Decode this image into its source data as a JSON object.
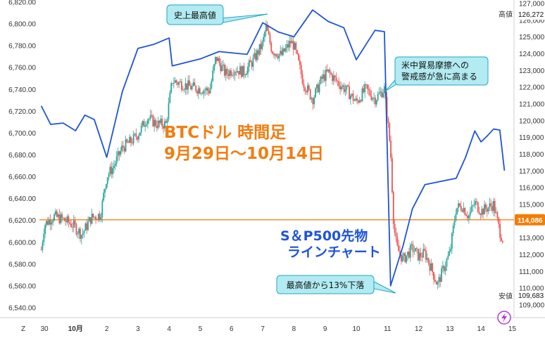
{
  "chart_data": {
    "type": "candlestick",
    "left_axis": {
      "ticks": [
        "6,820.00",
        "6,800.00",
        "6,780.00",
        "6,760.00",
        "6,740.00",
        "6,720.00",
        "6,700.00",
        "6,680.00",
        "6,660.00",
        "6,640.00",
        "6,620.00",
        "6,600.00",
        "6,580.00",
        "6,560.00",
        "6,540.00"
      ],
      "range": [
        6536,
        6822
      ]
    },
    "right_axis": {
      "ticks": [
        "127,000",
        "126,000",
        "125,000",
        "124,000",
        "123,000",
        "122,000",
        "121,000",
        "120,000",
        "119,000",
        "118,000",
        "117,000",
        "116,000",
        "115,000",
        "114,000",
        "113,000",
        "112,000",
        "111,000",
        "110,000",
        "109,000"
      ],
      "range": [
        108600,
        127200
      ]
    },
    "x_ticks": [
      "30",
      "10月",
      "2",
      "3",
      "4",
      "5",
      "6",
      "7",
      "8",
      "9",
      "10",
      "11",
      "12",
      "13",
      "14",
      "15"
    ],
    "x_days": [
      30,
      31,
      32,
      33,
      34,
      35,
      36,
      37,
      38,
      39,
      40,
      41,
      42,
      43,
      44,
      45
    ],
    "badges": {
      "high_label": "高値",
      "high_value": "126,272",
      "current_value": "114,086",
      "low_label": "安値",
      "low_value": "109,683"
    },
    "current_price": 114086,
    "btc_candles_approx": [
      [
        29.9,
        112300
      ],
      [
        30.0,
        113800
      ],
      [
        30.3,
        114300
      ],
      [
        30.6,
        114100
      ],
      [
        30.9,
        113800
      ],
      [
        31.2,
        113200
      ],
      [
        31.5,
        114200
      ],
      [
        31.8,
        114400
      ],
      [
        32.0,
        116700
      ],
      [
        32.2,
        117200
      ],
      [
        32.5,
        118400
      ],
      [
        32.8,
        118800
      ],
      [
        33.0,
        119200
      ],
      [
        33.3,
        120200
      ],
      [
        33.6,
        119800
      ],
      [
        33.9,
        119800
      ],
      [
        34.1,
        122400
      ],
      [
        34.4,
        122200
      ],
      [
        34.7,
        122000
      ],
      [
        35.0,
        121900
      ],
      [
        35.3,
        121800
      ],
      [
        35.5,
        123800
      ],
      [
        35.8,
        122800
      ],
      [
        36.1,
        123100
      ],
      [
        36.4,
        122900
      ],
      [
        36.7,
        123600
      ],
      [
        37.0,
        124600
      ],
      [
        37.1,
        125600
      ],
      [
        37.3,
        124200
      ],
      [
        37.6,
        123900
      ],
      [
        37.9,
        124700
      ],
      [
        38.0,
        124500
      ],
      [
        38.3,
        122300
      ],
      [
        38.6,
        121300
      ],
      [
        38.9,
        122500
      ],
      [
        39.1,
        122900
      ],
      [
        39.4,
        122300
      ],
      [
        39.7,
        121800
      ],
      [
        40.0,
        121100
      ],
      [
        40.3,
        121900
      ],
      [
        40.6,
        121300
      ],
      [
        40.9,
        121900
      ],
      [
        41.0,
        120100
      ],
      [
        41.1,
        118200
      ],
      [
        41.2,
        113800
      ],
      [
        41.3,
        112400
      ],
      [
        41.5,
        111700
      ],
      [
        41.8,
        112400
      ],
      [
        42.0,
        111900
      ],
      [
        42.2,
        112100
      ],
      [
        42.4,
        111200
      ],
      [
        42.6,
        110200
      ],
      [
        42.8,
        111200
      ],
      [
        43.0,
        112100
      ],
      [
        43.2,
        114800
      ],
      [
        43.4,
        114900
      ],
      [
        43.6,
        114300
      ],
      [
        43.8,
        115100
      ],
      [
        44.0,
        114600
      ],
      [
        44.2,
        114800
      ],
      [
        44.4,
        115000
      ],
      [
        44.6,
        113400
      ],
      [
        44.7,
        112900
      ]
    ],
    "sp500_line_approx": [
      [
        29.9,
        6725
      ],
      [
        30.2,
        6705
      ],
      [
        30.6,
        6710
      ],
      [
        31.0,
        6705
      ],
      [
        31.3,
        6715
      ],
      [
        31.6,
        6710
      ],
      [
        32.0,
        6680
      ],
      [
        32.5,
        6740
      ],
      [
        33.0,
        6775
      ],
      [
        33.5,
        6780
      ],
      [
        34.0,
        6790
      ],
      [
        34.1,
        6762
      ],
      [
        35.0,
        6765
      ],
      [
        35.6,
        6775
      ],
      [
        36.5,
        6775
      ],
      [
        37.0,
        6800
      ],
      [
        37.5,
        6790
      ],
      [
        38.0,
        6790
      ],
      [
        38.6,
        6815
      ],
      [
        39.1,
        6800
      ],
      [
        39.6,
        6795
      ],
      [
        40.0,
        6770
      ],
      [
        40.6,
        6795
      ],
      [
        40.9,
        6790
      ],
      [
        41.1,
        6560
      ],
      [
        41.5,
        6600
      ],
      [
        41.8,
        6630
      ],
      [
        42.2,
        6650
      ],
      [
        43.2,
        6660
      ],
      [
        43.5,
        6680
      ],
      [
        43.8,
        6700
      ],
      [
        44.0,
        6690
      ],
      [
        44.2,
        6700
      ],
      [
        44.4,
        6705
      ],
      [
        44.6,
        6700
      ],
      [
        44.75,
        6665
      ]
    ],
    "annotations": [
      {
        "text": "史上最高値"
      },
      {
        "line1": "米中貿易摩擦への",
        "line2": "警戒感が急に高まる"
      },
      {
        "text": "最高値から13%下落"
      }
    ],
    "title_line1": "BTCドル 時間足",
    "title_line2": "9月29日〜10月14日",
    "sp_label_line1": "S＆P500先物",
    "sp_label_line2": "ラインチャート",
    "colors": {
      "up": "#26a69a",
      "down": "#ef5350",
      "sp_line": "#1e54d8",
      "title": "#f07d10",
      "sp_label": "#1e54d8",
      "current_line": "#f57c00",
      "callout_fill": "#b2ebf2",
      "callout_stroke": "#26a6c6"
    },
    "corner_mark": "Z"
  }
}
